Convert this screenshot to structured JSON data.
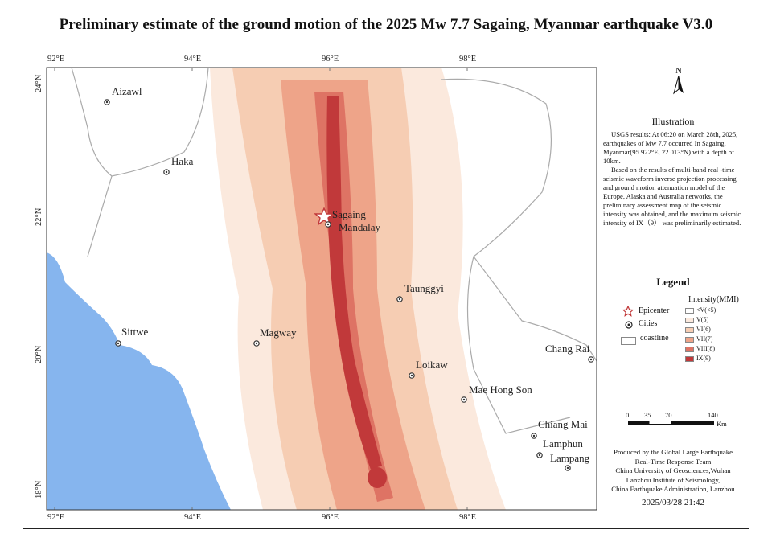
{
  "title": "Preliminary estimate of the ground motion of the 2025 Mw 7.7 Sagaing, Myanmar earthquake V3.0",
  "longitude_labels": [
    "92°E",
    "94°E",
    "96°E",
    "98°E"
  ],
  "latitude_labels": [
    "24°N",
    "22°N",
    "20°N",
    "18°N"
  ],
  "cities": [
    {
      "name": "Aizawl"
    },
    {
      "name": "Haka"
    },
    {
      "name": "Sagaing"
    },
    {
      "name": "Mandalay"
    },
    {
      "name": "Taunggyi"
    },
    {
      "name": "Sittwe"
    },
    {
      "name": "Magway"
    },
    {
      "name": "Loikaw"
    },
    {
      "name": "Chang Rai"
    },
    {
      "name": "Mae Hong Son"
    },
    {
      "name": "Chiang Mai"
    },
    {
      "name": "Lamphun"
    },
    {
      "name": "Lampang"
    }
  ],
  "north_arrow": {
    "label": "N",
    "icon": "north-arrow-icon"
  },
  "illustration": {
    "title": "Illustration",
    "para1": "USGS results: At 06:20 on March 28th, 2025, earthquakes of Mw 7.7 occurred In Sagaing, Myanmar(95.922°E, 22.013°N) with a depth of 10km.",
    "para2": "Based on the results of multi-band real -time seismic waveform inverse projection processing and ground motion attenuation model of the Europe, Alaska and Australia networks, the preliminary assessment map of the seismic intensity was obtained, and the maximum seismic intensity of IX（9） was preliminarily estimated."
  },
  "legend": {
    "title": "Legend",
    "intensity_title": "Intensity(MMI)",
    "epicenter_label": "Epicenter",
    "cities_label": "Cities",
    "coastline_label": "coastline",
    "intensity_classes": [
      {
        "label": "<V(<5)",
        "color": "#ffffff"
      },
      {
        "label": "V(5)",
        "color": "#fbe9dd"
      },
      {
        "label": "VI(6)",
        "color": "#f6cdb3"
      },
      {
        "label": "VII(7)",
        "color": "#eea489"
      },
      {
        "label": "VIII(8)",
        "color": "#de7364"
      },
      {
        "label": "IX(9)",
        "color": "#c1393a"
      }
    ]
  },
  "scale_bar": {
    "ticks": [
      "0",
      "35",
      "70",
      "140"
    ],
    "unit": "Km"
  },
  "credit": [
    "Produced by the Global Large Earthquake",
    "Real-Time Response Team",
    "China University of Geosciences,Wuhan",
    "Lanzhou Institute of Seismology,",
    "China Earthquake Administration, Lanzhou"
  ],
  "timestamp": "2025/03/28 21:42",
  "colors": {
    "sea": "#86b5ee",
    "border": "#aaaaaa",
    "epicenter": "#c1393a"
  }
}
